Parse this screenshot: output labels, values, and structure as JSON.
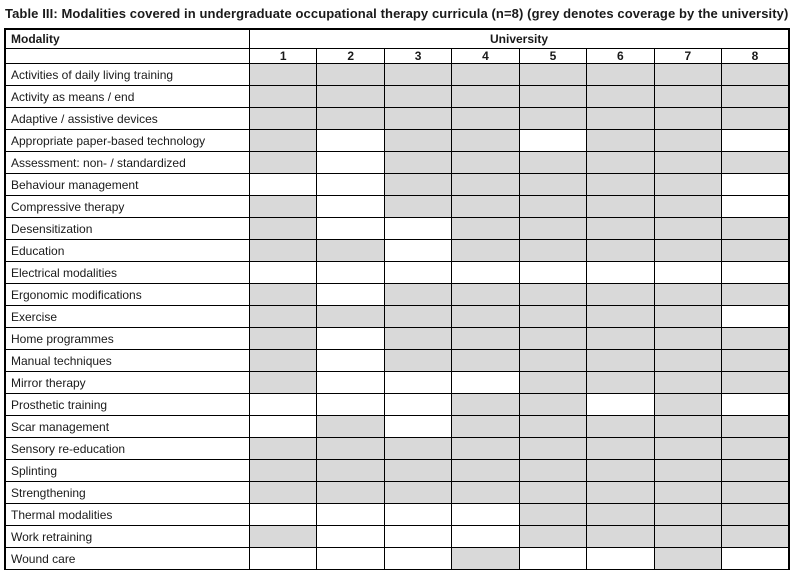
{
  "title": "Table III: Modalities covered in undergraduate occupational therapy curricula (n=8) (grey denotes coverage by the university)",
  "colors": {
    "covered": "#d9d9d9",
    "uncovered": "#ffffff",
    "border": "#000000"
  },
  "legend_meaning": "grey denotes coverage by the university",
  "table": {
    "modality_header": "Modality",
    "university_header": "University",
    "university_numbers": [
      "1",
      "2",
      "3",
      "4",
      "5",
      "6",
      "7",
      "8"
    ],
    "rows": [
      {
        "label": "Activities of daily living training",
        "coverage": [
          1,
          1,
          1,
          1,
          1,
          1,
          1,
          1
        ]
      },
      {
        "label": "Activity as means / end",
        "coverage": [
          1,
          1,
          1,
          1,
          1,
          1,
          1,
          1
        ]
      },
      {
        "label": "Adaptive / assistive devices",
        "coverage": [
          1,
          1,
          1,
          1,
          1,
          1,
          1,
          1
        ]
      },
      {
        "label": "Appropriate paper-based technology",
        "coverage": [
          1,
          0,
          1,
          1,
          0,
          1,
          1,
          0
        ]
      },
      {
        "label": "Assessment: non- / standardized",
        "coverage": [
          1,
          0,
          1,
          1,
          1,
          1,
          1,
          1
        ]
      },
      {
        "label": "Behaviour management",
        "coverage": [
          0,
          0,
          1,
          1,
          1,
          1,
          1,
          0
        ]
      },
      {
        "label": "Compressive therapy",
        "coverage": [
          1,
          0,
          1,
          1,
          1,
          1,
          1,
          0
        ]
      },
      {
        "label": "Desensitization",
        "coverage": [
          1,
          0,
          0,
          1,
          1,
          1,
          1,
          1
        ]
      },
      {
        "label": "Education",
        "coverage": [
          1,
          1,
          0,
          1,
          1,
          1,
          1,
          1
        ]
      },
      {
        "label": "Electrical modalities",
        "coverage": [
          0,
          0,
          0,
          0,
          0,
          0,
          0,
          0
        ]
      },
      {
        "label": "Ergonomic modifications",
        "coverage": [
          1,
          0,
          1,
          1,
          1,
          1,
          1,
          1
        ]
      },
      {
        "label": "Exercise",
        "coverage": [
          1,
          1,
          1,
          1,
          1,
          1,
          1,
          0
        ]
      },
      {
        "label": "Home programmes",
        "coverage": [
          1,
          0,
          1,
          1,
          1,
          1,
          1,
          1
        ]
      },
      {
        "label": "Manual techniques",
        "coverage": [
          1,
          0,
          1,
          1,
          1,
          1,
          1,
          1
        ]
      },
      {
        "label": "Mirror therapy",
        "coverage": [
          1,
          0,
          0,
          0,
          1,
          1,
          1,
          1
        ]
      },
      {
        "label": "Prosthetic training",
        "coverage": [
          0,
          0,
          0,
          1,
          1,
          0,
          1,
          0
        ]
      },
      {
        "label": "Scar management",
        "coverage": [
          0,
          1,
          0,
          1,
          1,
          1,
          1,
          1
        ]
      },
      {
        "label": "Sensory re-education",
        "coverage": [
          1,
          1,
          1,
          1,
          1,
          1,
          1,
          1
        ]
      },
      {
        "label": "Splinting",
        "coverage": [
          1,
          1,
          1,
          1,
          1,
          1,
          1,
          1
        ]
      },
      {
        "label": "Strengthening",
        "coverage": [
          1,
          1,
          1,
          1,
          1,
          1,
          1,
          1
        ]
      },
      {
        "label": "Thermal modalities",
        "coverage": [
          0,
          0,
          0,
          0,
          1,
          1,
          1,
          1
        ]
      },
      {
        "label": "Work retraining",
        "coverage": [
          1,
          0,
          0,
          0,
          1,
          1,
          1,
          1
        ]
      },
      {
        "label": "Wound care",
        "coverage": [
          0,
          0,
          0,
          1,
          0,
          0,
          1,
          0
        ]
      }
    ]
  }
}
